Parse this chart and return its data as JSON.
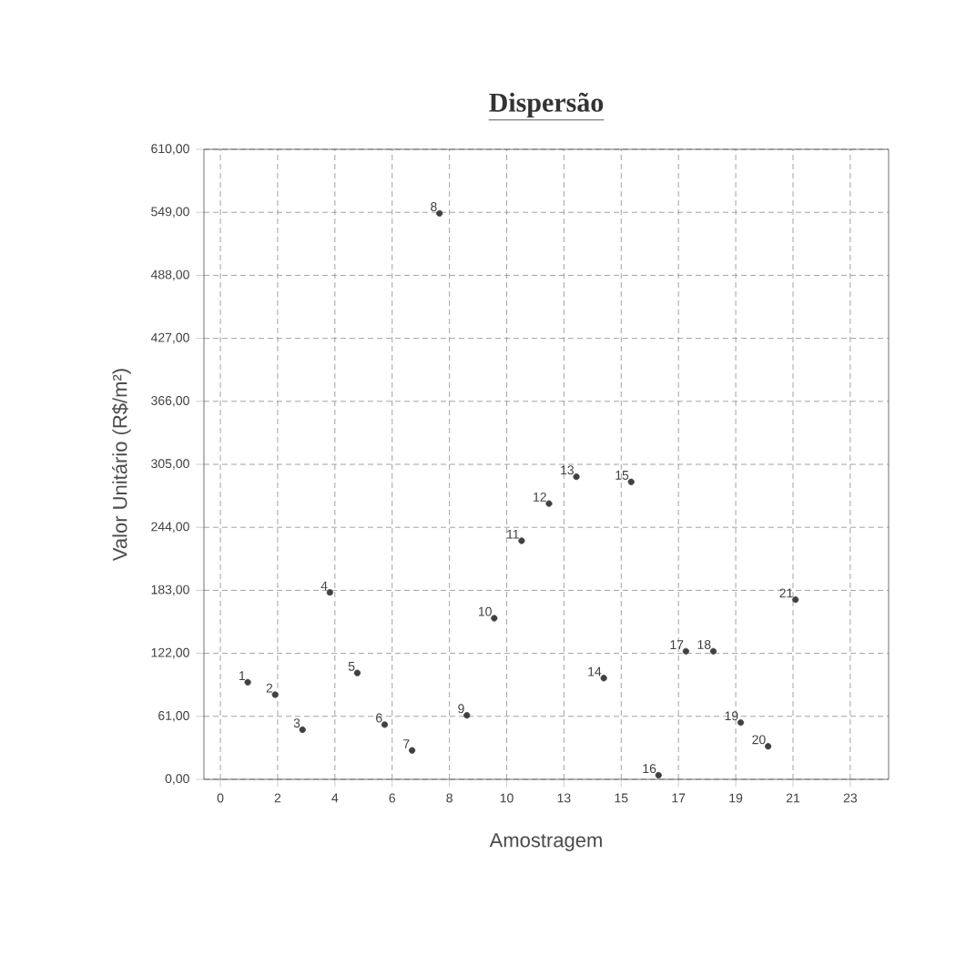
{
  "chart_data": {
    "type": "scatter",
    "title": "Dispersão",
    "xlabel": "Amostragem",
    "ylabel": "Valor Unitário (R$/m²)",
    "x": [
      1,
      2,
      3,
      4,
      5,
      6,
      7,
      8,
      9,
      10,
      11,
      12,
      13,
      14,
      15,
      16,
      17,
      18,
      19,
      20,
      21
    ],
    "series": [
      {
        "color": "#404040",
        "values": [
          94,
          82,
          48,
          181,
          103,
          53,
          28,
          548,
          62,
          156,
          231,
          267,
          293,
          98,
          288,
          4,
          124,
          124,
          55,
          32,
          174
        ]
      }
    ],
    "xlim": [
      -0.6,
      24.4
    ],
    "ylim": [
      0,
      610
    ],
    "xticks": [
      0,
      {
        "value": 2.091,
        "label": "2"
      },
      {
        "value": 4.182,
        "label": "4"
      },
      {
        "value": 6.273,
        "label": "6"
      },
      {
        "value": 8.364,
        "label": "8"
      },
      {
        "value": 10.455,
        "label": "10"
      },
      {
        "value": 12.545,
        "label": "13"
      },
      {
        "value": 14.636,
        "label": "15"
      },
      {
        "value": 16.727,
        "label": "17"
      },
      {
        "value": 18.818,
        "label": "19"
      },
      {
        "value": 20.909,
        "label": "21"
      },
      23
    ],
    "yticks": [
      {
        "value": 0,
        "label": "0,00"
      },
      {
        "value": 61,
        "label": "61,00"
      },
      {
        "value": 122,
        "label": "122,00"
      },
      {
        "value": 183,
        "label": "183,00"
      },
      {
        "value": 244,
        "label": "244,00"
      },
      {
        "value": 305,
        "label": "305,00"
      },
      {
        "value": 366,
        "label": "366,00"
      },
      {
        "value": 427,
        "label": "427,00"
      },
      {
        "value": 488,
        "label": "488,00"
      },
      {
        "value": 549,
        "label": "549,00"
      },
      {
        "value": 610,
        "label": "610,00"
      }
    ],
    "grid": true,
    "marker": "circle",
    "annotations": [
      {
        "text": "1",
        "x": 1,
        "y": 94
      },
      {
        "text": "2",
        "x": 2,
        "y": 82
      },
      {
        "text": "3",
        "x": 3,
        "y": 48
      },
      {
        "text": "4",
        "x": 4,
        "y": 181
      },
      {
        "text": "5",
        "x": 5,
        "y": 103
      },
      {
        "text": "6",
        "x": 6,
        "y": 53
      },
      {
        "text": "7",
        "x": 7,
        "y": 28
      },
      {
        "text": "8",
        "x": 8,
        "y": 548
      },
      {
        "text": "9",
        "x": 9,
        "y": 62
      },
      {
        "text": "10",
        "x": 10,
        "y": 156
      },
      {
        "text": "11",
        "x": 11,
        "y": 231
      },
      {
        "text": "12",
        "x": 12,
        "y": 267
      },
      {
        "text": "13",
        "x": 13,
        "y": 293
      },
      {
        "text": "14",
        "x": 14,
        "y": 98
      },
      {
        "text": "15",
        "x": 15,
        "y": 288
      },
      {
        "text": "16",
        "x": 16,
        "y": 4
      },
      {
        "text": "17",
        "x": 17,
        "y": 124
      },
      {
        "text": "18",
        "x": 18,
        "y": 124
      },
      {
        "text": "19",
        "x": 19,
        "y": 55
      },
      {
        "text": "20",
        "x": 20,
        "y": 32
      },
      {
        "text": "21",
        "x": 21,
        "y": 174
      }
    ]
  }
}
